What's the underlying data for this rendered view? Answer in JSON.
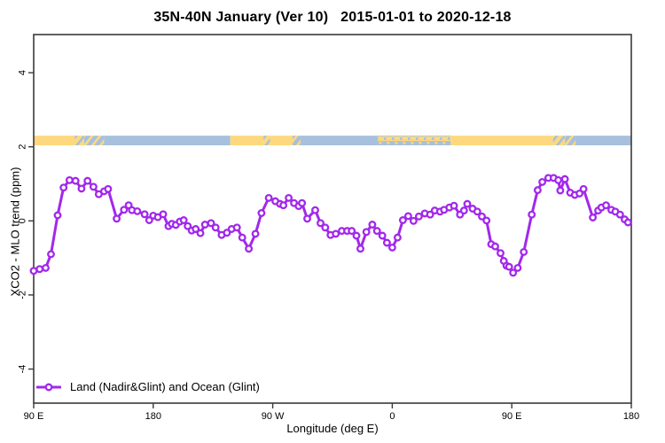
{
  "title": "35N-40N January (Ver 10)   2015-01-01 to 2020-12-18",
  "colors": {
    "series": "#A228EC",
    "land": "#FDD87E",
    "ocean": "#A6C0DD",
    "axis": "#3a3a3a",
    "text": "#000000",
    "marker_fill": "#ffffff"
  },
  "legend": {
    "label": "Land (Nadir&Glint) and Ocean (Glint)"
  },
  "chart_data": {
    "type": "line",
    "title": "35N-40N January (Ver 10)   2015-01-01 to 2020-12-18",
    "xlabel": "Longitude (deg E)",
    "ylabel": "XCO2 - MLO trend (ppm)",
    "xlim": [
      90,
      540
    ],
    "ylim": [
      -4.92,
      5.03
    ],
    "grid": false,
    "legend_position": "bottom-left",
    "x_ticks": [
      {
        "label": "90 E",
        "value": 90
      },
      {
        "label": "180",
        "value": 180
      },
      {
        "label": "90 W",
        "value": 270
      },
      {
        "label": "0",
        "value": 360
      },
      {
        "label": "90 E",
        "value": 450
      },
      {
        "label": "180",
        "value": 540
      }
    ],
    "y_ticks": [
      {
        "label": "-4",
        "value": -4
      },
      {
        "label": "-2",
        "value": -2
      },
      {
        "label": "0",
        "value": 0
      },
      {
        "label": "2",
        "value": 2
      },
      {
        "label": "4",
        "value": 4
      }
    ],
    "band": {
      "meaning": "surface type strip: land (yellow) / ocean (blue)",
      "y_top": 2.3,
      "y_bottom": 2.04,
      "segments": [
        {
          "from": 90,
          "to": 121,
          "type": "land"
        },
        {
          "from": 121,
          "to": 128,
          "type": "mixY"
        },
        {
          "from": 128,
          "to": 143,
          "type": "mixB"
        },
        {
          "from": 143,
          "to": 238,
          "type": "ocean"
        },
        {
          "from": 238,
          "to": 263,
          "type": "land"
        },
        {
          "from": 263,
          "to": 268,
          "type": "mixY"
        },
        {
          "from": 268,
          "to": 285,
          "type": "land"
        },
        {
          "from": 285,
          "to": 291,
          "type": "mixB"
        },
        {
          "from": 291,
          "to": 349,
          "type": "ocean"
        },
        {
          "from": 349,
          "to": 404,
          "type": "mixH"
        },
        {
          "from": 404,
          "to": 481,
          "type": "land"
        },
        {
          "from": 481,
          "to": 490,
          "type": "mixY"
        },
        {
          "from": 490,
          "to": 498,
          "type": "mixB"
        },
        {
          "from": 498,
          "to": 540,
          "type": "ocean"
        }
      ]
    },
    "series": [
      {
        "name": "Land (Nadir&Glint) and Ocean (Glint)",
        "points": [
          [
            90,
            -1.35
          ],
          [
            94.5,
            -1.3
          ],
          [
            99,
            -1.27
          ],
          [
            103,
            -0.9
          ],
          [
            108,
            0.15
          ],
          [
            112.5,
            0.9
          ],
          [
            117,
            1.1
          ],
          [
            121.5,
            1.08
          ],
          [
            126,
            0.87
          ],
          [
            130.5,
            1.08
          ],
          [
            135,
            0.92
          ],
          [
            139,
            0.72
          ],
          [
            143,
            0.8
          ],
          [
            146,
            0.86
          ],
          [
            152.5,
            0.06
          ],
          [
            158,
            0.3
          ],
          [
            161.5,
            0.42
          ],
          [
            164,
            0.29
          ],
          [
            168,
            0.26
          ],
          [
            173.5,
            0.18
          ],
          [
            177,
            0.02
          ],
          [
            180,
            0.14
          ],
          [
            183.5,
            0.1
          ],
          [
            187.5,
            0.18
          ],
          [
            191.5,
            -0.14
          ],
          [
            194,
            -0.08
          ],
          [
            197,
            -0.11
          ],
          [
            200,
            -0.02
          ],
          [
            203,
            0.02
          ],
          [
            206,
            -0.14
          ],
          [
            209,
            -0.26
          ],
          [
            212,
            -0.22
          ],
          [
            215.5,
            -0.33
          ],
          [
            219,
            -0.1
          ],
          [
            223.5,
            -0.06
          ],
          [
            227,
            -0.18
          ],
          [
            231.5,
            -0.38
          ],
          [
            235.5,
            -0.32
          ],
          [
            239,
            -0.22
          ],
          [
            243,
            -0.18
          ],
          [
            247,
            -0.45
          ],
          [
            252,
            -0.75
          ],
          [
            257,
            -0.35
          ],
          [
            261.5,
            0.21
          ],
          [
            267,
            0.62
          ],
          [
            272,
            0.53
          ],
          [
            275.5,
            0.46
          ],
          [
            278,
            0.42
          ],
          [
            282,
            0.62
          ],
          [
            286,
            0.48
          ],
          [
            289.5,
            0.4
          ],
          [
            292,
            0.48
          ],
          [
            296,
            0.06
          ],
          [
            302,
            0.29
          ],
          [
            306,
            -0.06
          ],
          [
            309.5,
            -0.18
          ],
          [
            313.5,
            -0.38
          ],
          [
            317.5,
            -0.35
          ],
          [
            322,
            -0.27
          ],
          [
            326,
            -0.27
          ],
          [
            329.5,
            -0.27
          ],
          [
            333,
            -0.4
          ],
          [
            336,
            -0.75
          ],
          [
            340.5,
            -0.3
          ],
          [
            345,
            -0.1
          ],
          [
            348.5,
            -0.27
          ],
          [
            352.5,
            -0.4
          ],
          [
            356,
            -0.59
          ],
          [
            360,
            -0.72
          ],
          [
            364,
            -0.45
          ],
          [
            368,
            0.02
          ],
          [
            372,
            0.13
          ],
          [
            376,
            0.0
          ],
          [
            380,
            0.12
          ],
          [
            384.5,
            0.2
          ],
          [
            388.5,
            0.17
          ],
          [
            392,
            0.28
          ],
          [
            396,
            0.25
          ],
          [
            399,
            0.3
          ],
          [
            403,
            0.36
          ],
          [
            406.5,
            0.41
          ],
          [
            411,
            0.17
          ],
          [
            414,
            0.28
          ],
          [
            416.5,
            0.46
          ],
          [
            420.5,
            0.33
          ],
          [
            424,
            0.25
          ],
          [
            427.5,
            0.12
          ],
          [
            431,
            0.01
          ],
          [
            434.5,
            -0.63
          ],
          [
            437.5,
            -0.69
          ],
          [
            441.5,
            -0.87
          ],
          [
            444,
            -1.08
          ],
          [
            446,
            -1.21
          ],
          [
            448,
            -1.24
          ],
          [
            451,
            -1.4
          ],
          [
            454.5,
            -1.27
          ],
          [
            459,
            -0.84
          ],
          [
            465,
            0.17
          ],
          [
            469.5,
            0.83
          ],
          [
            473,
            1.05
          ],
          [
            477.5,
            1.16
          ],
          [
            481.5,
            1.16
          ],
          [
            485,
            1.1
          ],
          [
            486.5,
            0.82
          ],
          [
            490,
            1.13
          ],
          [
            494,
            0.76
          ],
          [
            497.5,
            0.7
          ],
          [
            501,
            0.74
          ],
          [
            504,
            0.86
          ],
          [
            511,
            0.09
          ],
          [
            515,
            0.28
          ],
          [
            517.5,
            0.36
          ],
          [
            521,
            0.42
          ],
          [
            525,
            0.3
          ],
          [
            528,
            0.25
          ],
          [
            531.5,
            0.17
          ],
          [
            535,
            0.04
          ],
          [
            537.5,
            -0.04
          ]
        ]
      }
    ]
  }
}
